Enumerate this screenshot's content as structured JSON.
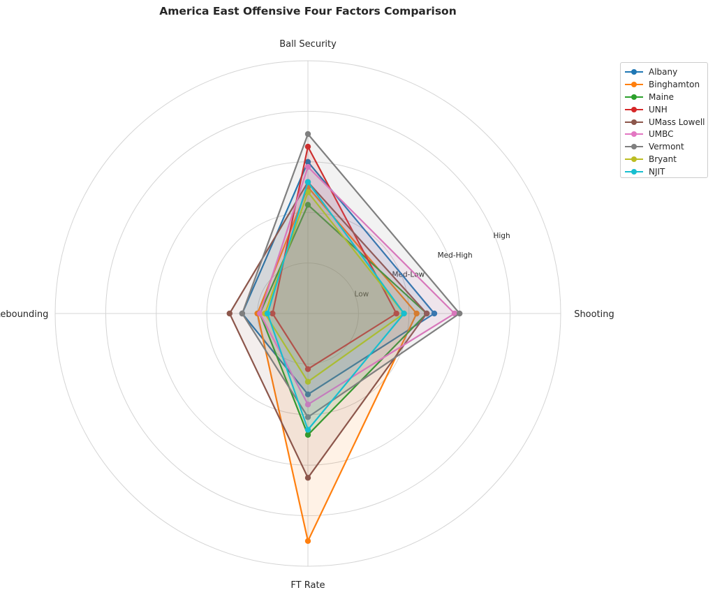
{
  "chart_data": {
    "type": "radar",
    "title": "America East Offensive Four Factors Comparison",
    "axes": [
      "Ball Security",
      "Shooting",
      "FT Rate",
      "Off Rebounding"
    ],
    "ring_labels": [
      "Low",
      "Med-Low",
      "Med-High",
      "High"
    ],
    "rmax": 5,
    "grid": true,
    "legend_position": "top-right",
    "series": [
      {
        "name": "Albany",
        "color": "#1f77b4",
        "values": [
          3.0,
          2.5,
          1.6,
          1.3
        ]
      },
      {
        "name": "Binghamton",
        "color": "#ff7f0e",
        "values": [
          2.5,
          2.15,
          4.5,
          1.0
        ]
      },
      {
        "name": "Maine",
        "color": "#2ca02c",
        "values": [
          2.15,
          2.35,
          2.4,
          0.95
        ]
      },
      {
        "name": "UNH",
        "color": "#d62728",
        "values": [
          3.3,
          1.75,
          1.1,
          0.7
        ]
      },
      {
        "name": "UMass Lowell",
        "color": "#8c564b",
        "values": [
          2.6,
          2.35,
          3.25,
          1.55
        ]
      },
      {
        "name": "UMBC",
        "color": "#e377c2",
        "values": [
          2.9,
          2.9,
          1.8,
          0.95
        ]
      },
      {
        "name": "Vermont",
        "color": "#7f7f7f",
        "values": [
          3.55,
          3.0,
          2.05,
          1.3
        ]
      },
      {
        "name": "Bryant",
        "color": "#bcbd22",
        "values": [
          2.4,
          1.9,
          1.35,
          0.85
        ]
      },
      {
        "name": "NJIT",
        "color": "#17becf",
        "values": [
          2.6,
          1.9,
          2.3,
          0.8
        ]
      }
    ]
  }
}
